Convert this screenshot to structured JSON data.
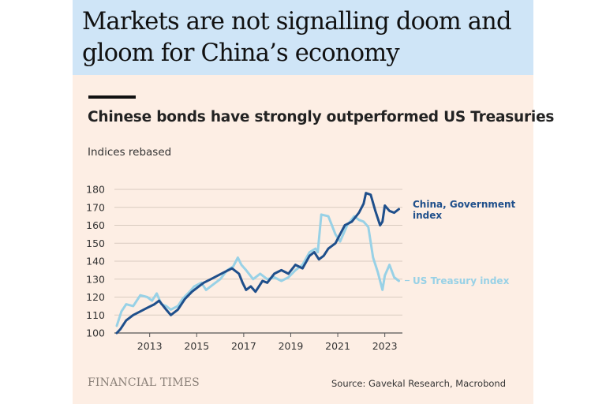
{
  "headline": "Markets are not signalling doom and gloom for China’s economy",
  "subtitle": "Chinese bonds have strongly outperformed US Treasuries",
  "unit_label": "Indices rebased",
  "brand": "FINANCIAL TIMES",
  "source": "Source: Gavekal Research, Macrobond",
  "colors": {
    "headline_band": "#cfe5f7",
    "background": "#fdeee4",
    "china": "#1f4f8b",
    "us": "#98d1e6",
    "grid": "#d9cbc0"
  },
  "chart_data": {
    "type": "line",
    "title": "Chinese bonds have strongly outperformed US Treasuries",
    "ylabel": "Indices rebased",
    "ylim": [
      100,
      180
    ],
    "yticks": [
      100,
      110,
      120,
      130,
      140,
      150,
      160,
      170,
      180
    ],
    "xlim": [
      2011.5,
      2023.75
    ],
    "xticks": [
      2013,
      2015,
      2017,
      2019,
      2021,
      2023
    ],
    "grid": "horizontal",
    "legend": "direct labels at right end of lines",
    "series": [
      {
        "name": "China, Government index",
        "label_lines": [
          "China, Government",
          "index"
        ],
        "color": "#1f4f8b",
        "x": [
          2011.6,
          2011.75,
          2012.0,
          2012.3,
          2012.6,
          2012.9,
          2013.2,
          2013.4,
          2013.7,
          2013.9,
          2014.2,
          2014.5,
          2014.8,
          2015.0,
          2015.3,
          2015.6,
          2015.9,
          2016.2,
          2016.5,
          2016.8,
          2016.95,
          2017.1,
          2017.3,
          2017.5,
          2017.8,
          2018.0,
          2018.3,
          2018.6,
          2018.9,
          2019.2,
          2019.5,
          2019.8,
          2020.0,
          2020.2,
          2020.4,
          2020.6,
          2020.9,
          2021.1,
          2021.3,
          2021.6,
          2021.9,
          2022.1,
          2022.2,
          2022.4,
          2022.6,
          2022.8,
          2022.9,
          2023.0,
          2023.2,
          2023.4,
          2023.6
        ],
        "values": [
          100,
          102,
          107,
          110,
          112,
          114,
          116,
          118,
          113,
          110,
          113,
          119,
          123,
          125,
          128,
          130,
          132,
          134,
          136,
          133,
          128,
          124,
          126,
          123,
          129,
          128,
          133,
          135,
          133,
          138,
          136,
          143,
          145,
          141,
          143,
          147,
          150,
          155,
          160,
          162,
          167,
          172,
          178,
          177,
          168,
          160,
          162,
          171,
          168,
          167,
          169
        ]
      },
      {
        "name": "US Treasury index",
        "label_lines": [
          "US Treasury index"
        ],
        "color": "#98d1e6",
        "x": [
          2011.6,
          2011.8,
          2012.0,
          2012.3,
          2012.6,
          2012.9,
          2013.1,
          2013.3,
          2013.5,
          2013.7,
          2013.9,
          2014.2,
          2014.4,
          2014.7,
          2014.9,
          2015.2,
          2015.4,
          2015.7,
          2016.0,
          2016.3,
          2016.55,
          2016.75,
          2016.9,
          2017.1,
          2017.4,
          2017.7,
          2018.0,
          2018.3,
          2018.6,
          2018.9,
          2019.2,
          2019.5,
          2019.8,
          2020.05,
          2020.15,
          2020.3,
          2020.6,
          2020.9,
          2021.1,
          2021.4,
          2021.7,
          2021.9,
          2022.1,
          2022.3,
          2022.5,
          2022.7,
          2022.9,
          2023.0,
          2023.2,
          2023.4,
          2023.6
        ],
        "values": [
          104,
          112,
          116,
          115,
          121,
          120,
          118,
          122,
          116,
          115,
          113,
          115,
          119,
          123,
          126,
          128,
          124,
          127,
          130,
          135,
          137,
          142,
          138,
          135,
          130,
          133,
          130,
          131,
          129,
          131,
          135,
          138,
          145,
          147,
          145,
          166,
          165,
          155,
          151,
          160,
          165,
          163,
          162,
          159,
          142,
          134,
          124,
          132,
          138,
          131,
          129
        ]
      }
    ]
  }
}
